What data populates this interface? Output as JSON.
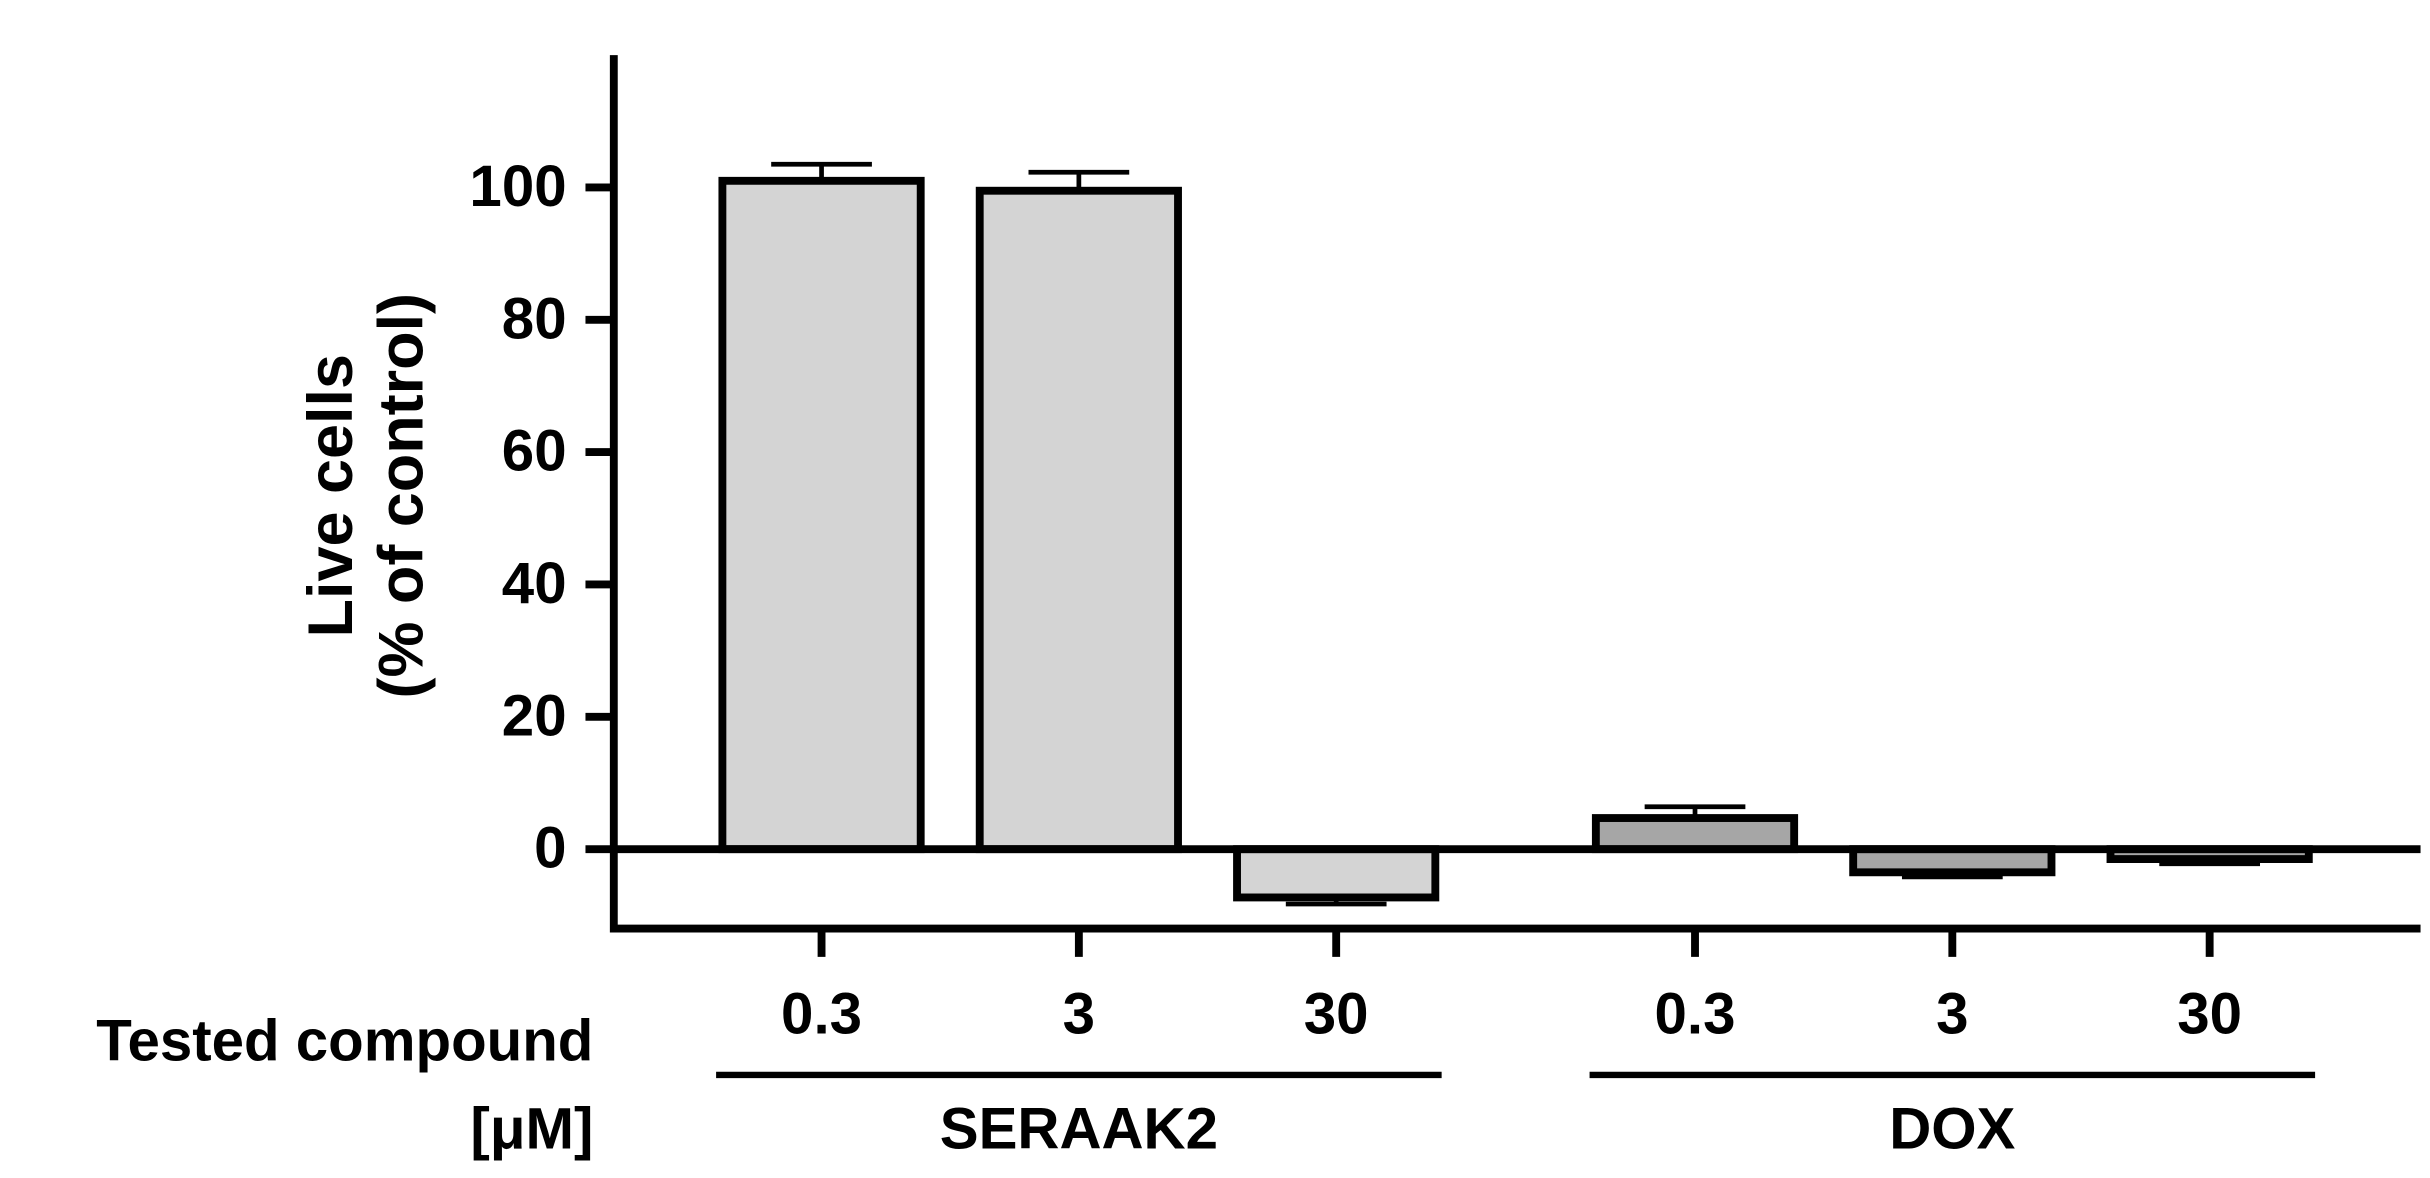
{
  "chart_data": {
    "type": "bar",
    "y_label": [
      "Live cells",
      "(% of control)"
    ],
    "x_label": [
      "Tested compound",
      "[μM]"
    ],
    "ylim": [
      -12,
      120
    ],
    "yticks": [
      0,
      20,
      40,
      60,
      80,
      100
    ],
    "groups": [
      {
        "name": "SERAAK2",
        "color": "#d4d4d4",
        "categories": [
          "0.3",
          "3",
          "30"
        ],
        "values": [
          101,
          99.5,
          -7.3
        ],
        "errors": [
          2.5,
          2.8,
          1
        ]
      },
      {
        "name": "DOX",
        "color": "#a6a6a6",
        "categories": [
          "0.3",
          "3",
          "30"
        ],
        "values": [
          4.7,
          -3.5,
          -1.5
        ],
        "errors": [
          1.7,
          0.7,
          0.7
        ]
      }
    ]
  }
}
